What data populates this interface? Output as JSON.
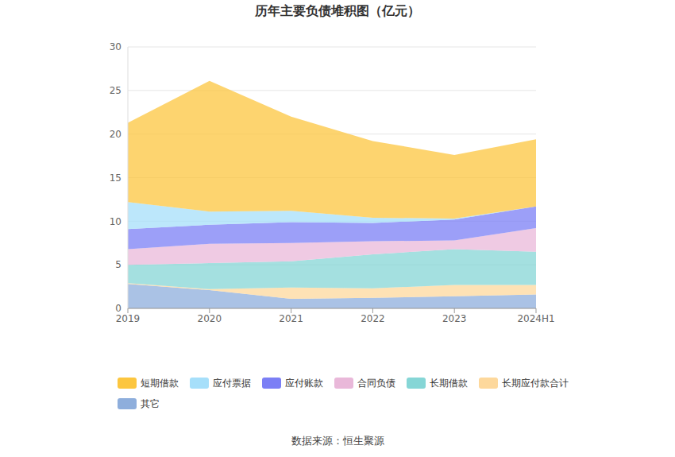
{
  "chart_data": {
    "type": "area",
    "title": "历年主要负债堆积图（亿元）",
    "source": "数据来源：恒生聚源",
    "categories": [
      "2019",
      "2020",
      "2021",
      "2022",
      "2023",
      "2024H1"
    ],
    "series": [
      {
        "name": "短期借款",
        "color": "#fcc63f",
        "values": [
          9.1,
          15.0,
          10.8,
          8.8,
          7.3,
          7.7
        ]
      },
      {
        "name": "应付票据",
        "color": "#a6dffa",
        "values": [
          3.1,
          1.5,
          1.3,
          0.6,
          0.1,
          0.0
        ]
      },
      {
        "name": "应付账款",
        "color": "#7b7ff5",
        "values": [
          2.3,
          2.2,
          2.4,
          2.1,
          2.4,
          2.5
        ]
      },
      {
        "name": "合同负债",
        "color": "#e9b8d9",
        "values": [
          1.8,
          2.2,
          2.1,
          1.5,
          1.0,
          2.7
        ]
      },
      {
        "name": "长期借款",
        "color": "#86d6d6",
        "values": [
          2.1,
          3.0,
          3.0,
          3.9,
          4.1,
          3.8
        ]
      },
      {
        "name": "长期应付款合计",
        "color": "#fdd89c",
        "values": [
          0.1,
          0.1,
          1.3,
          1.1,
          1.3,
          1.1
        ]
      },
      {
        "name": "其它",
        "color": "#8eaedc",
        "values": [
          2.8,
          2.1,
          1.1,
          1.2,
          1.4,
          1.6
        ]
      }
    ],
    "ylim": [
      0,
      30
    ],
    "yticks": [
      0,
      5,
      10,
      15,
      20,
      25,
      30
    ],
    "grid": true,
    "stacked": true,
    "legend": "bottom"
  }
}
